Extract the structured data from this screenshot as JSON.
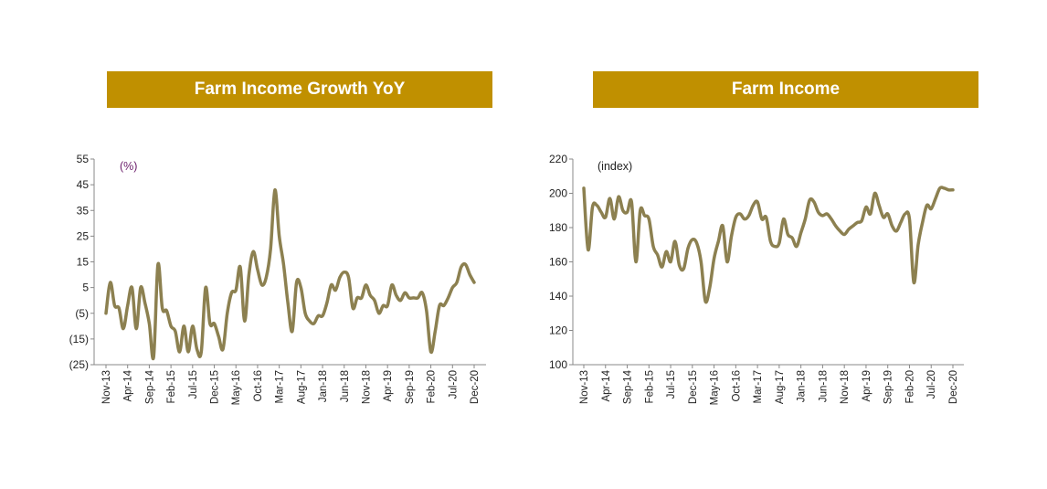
{
  "colors": {
    "banner": "#C09000",
    "line": "#8C8050",
    "axis": "#888888",
    "unit_growth": "#6A1C6A"
  },
  "chart_data": [
    {
      "type": "line",
      "title": "Farm Income Growth YoY",
      "unit": "(%)",
      "ylim": [
        -25,
        55
      ],
      "yticks": [
        55,
        45,
        35,
        25,
        15,
        5,
        -5,
        -15,
        -25
      ],
      "ytick_labels": [
        "55",
        "45",
        "35",
        "25",
        "15",
        "5",
        "(5)",
        "(15)",
        "(25)"
      ],
      "xlabels": [
        "Nov-13",
        "Apr-14",
        "Sep-14",
        "Feb-15",
        "Jul-15",
        "Dec-15",
        "May-16",
        "Oct-16",
        "Mar-17",
        "Aug-17",
        "Jan-18",
        "Jun-18",
        "Nov-18",
        "Apr-19",
        "Sep-19",
        "Feb-20",
        "Jul-20",
        "Dec-20"
      ],
      "series": [
        {
          "name": "Farm Income Growth YoY",
          "values": [
            -5,
            7,
            -2,
            -3,
            -11,
            -2,
            5,
            -11,
            5,
            -1,
            -9,
            -22,
            14,
            -3,
            -4,
            -10,
            -12,
            -20,
            -10,
            -20,
            -10,
            -19,
            -20,
            5,
            -9,
            -9,
            -14,
            -19,
            -5,
            3,
            4,
            13,
            -8,
            10,
            19,
            12,
            6,
            9,
            20,
            43,
            25,
            14,
            -1,
            -12,
            7,
            5,
            -5,
            -8,
            -9,
            -6,
            -6,
            -1,
            6,
            4,
            9,
            11,
            9,
            -3,
            1,
            1,
            6,
            2,
            0,
            -5,
            -2,
            -2,
            6,
            2,
            0,
            3,
            1,
            1,
            1,
            3,
            -4,
            -20,
            -12,
            -2,
            -2,
            1,
            5,
            7,
            13,
            14,
            10,
            7
          ]
        }
      ]
    },
    {
      "type": "line",
      "title": "Farm Income",
      "unit": "(index)",
      "ylim": [
        100,
        220
      ],
      "yticks": [
        220,
        200,
        180,
        160,
        140,
        120,
        100
      ],
      "ytick_labels": [
        "220",
        "200",
        "180",
        "160",
        "140",
        "120",
        "100"
      ],
      "xlabels": [
        "Nov-13",
        "Apr-14",
        "Sep-14",
        "Feb-15",
        "Jul-15",
        "Dec-15",
        "May-16",
        "Oct-16",
        "Mar-17",
        "Aug-17",
        "Jan-18",
        "Jun-18",
        "Nov-18",
        "Apr-19",
        "Sep-19",
        "Feb-20",
        "Jul-20",
        "Dec-20"
      ],
      "series": [
        {
          "name": "Farm Income",
          "values": [
            203,
            167,
            192,
            193,
            189,
            186,
            197,
            185,
            198,
            190,
            189,
            195,
            160,
            190,
            187,
            185,
            169,
            164,
            157,
            166,
            160,
            172,
            158,
            156,
            168,
            173,
            171,
            160,
            137,
            145,
            162,
            172,
            181,
            160,
            175,
            186,
            188,
            185,
            187,
            193,
            195,
            185,
            186,
            172,
            169,
            171,
            185,
            176,
            174,
            169,
            177,
            185,
            196,
            195,
            189,
            187,
            188,
            185,
            181,
            178,
            176,
            179,
            181,
            183,
            184,
            192,
            188,
            200,
            193,
            186,
            188,
            181,
            178,
            183,
            188,
            185,
            148,
            170,
            183,
            193,
            191,
            197,
            203,
            203,
            202,
            202
          ]
        }
      ]
    }
  ]
}
